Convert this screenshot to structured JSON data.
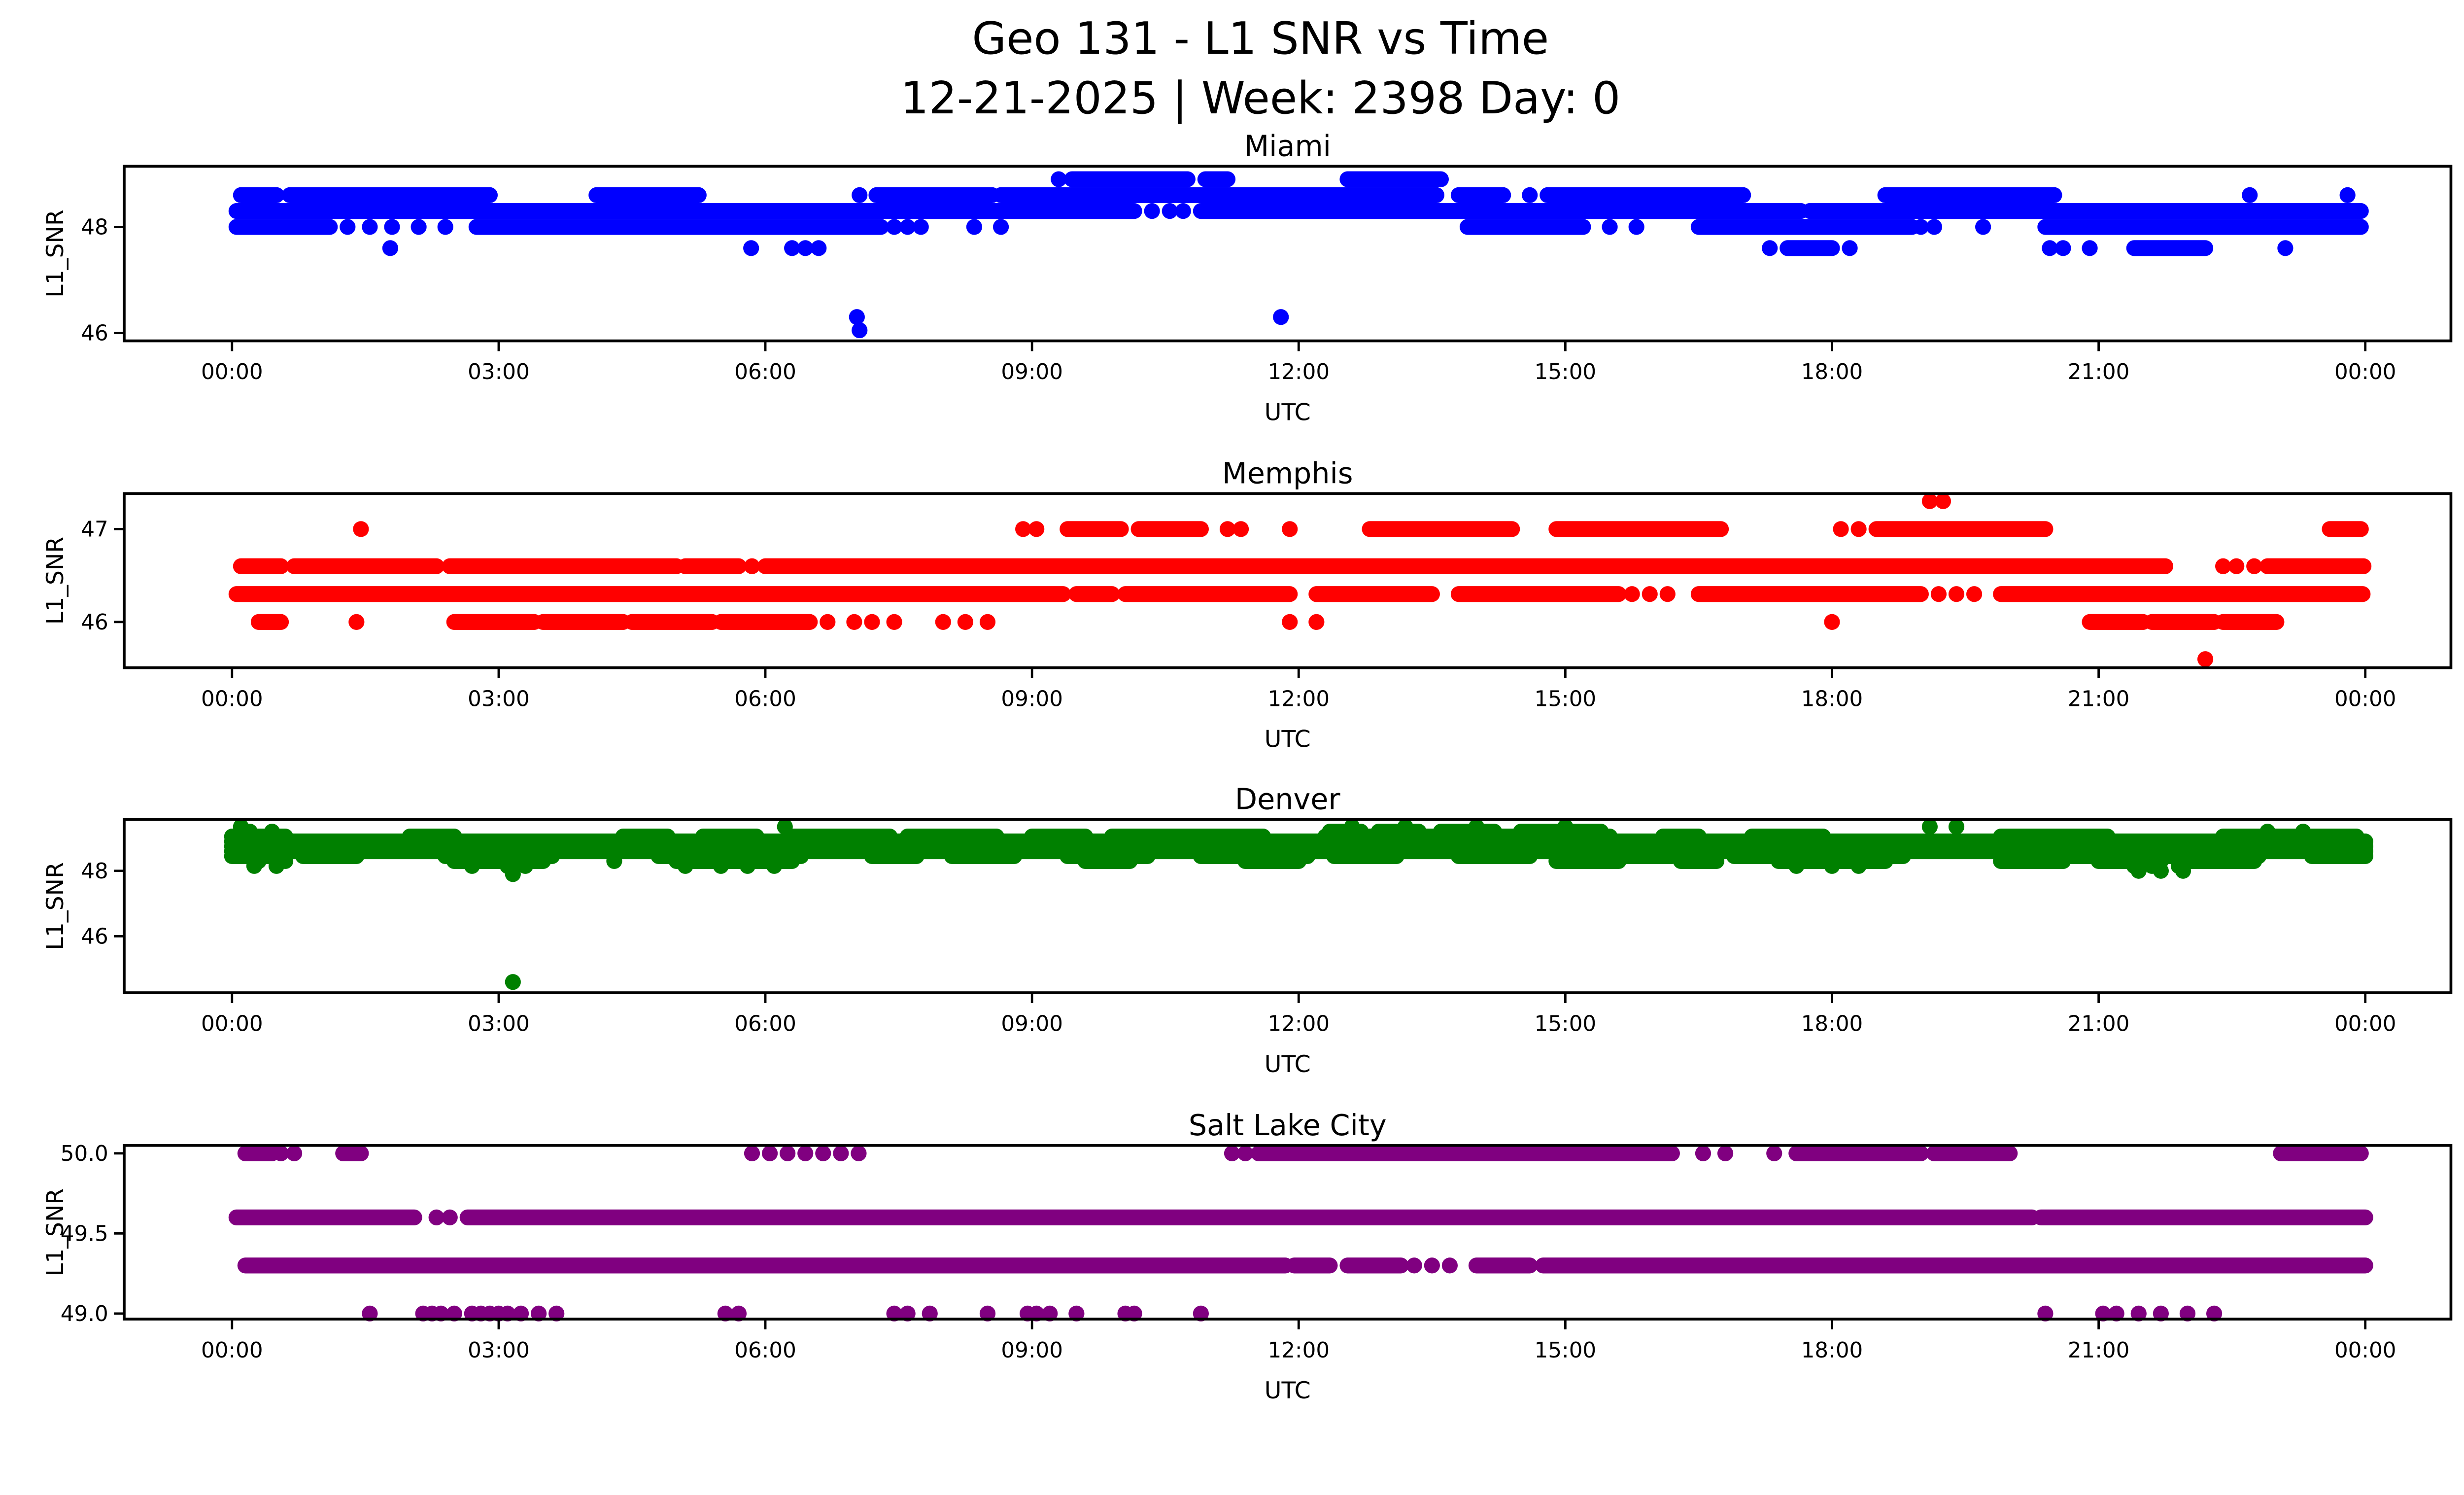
{
  "header": {
    "title_line1": "Geo 131 - L1 SNR vs Time",
    "title_line2": "12-21-2025 | Week: 2398 Day: 0"
  },
  "chart_data": {
    "type": "scatter",
    "title": "Geo 131 - L1 SNR vs Time",
    "subtitle": "12-21-2025 | Week: 2398 Day: 0",
    "x_axis": {
      "label": "UTC",
      "tick_hours": [
        0,
        3,
        6,
        9,
        12,
        15,
        18,
        21,
        24
      ],
      "tick_labels": [
        "00:00",
        "03:00",
        "06:00",
        "09:00",
        "12:00",
        "15:00",
        "18:00",
        "21:00",
        "00:00"
      ],
      "xlim_hours": [
        -1.2,
        25.0
      ],
      "grid": false
    },
    "y_axis_label": "L1_SNR",
    "legend": "none",
    "subplots": [
      {
        "title": "Miami",
        "color": "#0000ff",
        "ytick_values": [
          48,
          46
        ],
        "ytick_labels": [
          "48",
          "46"
        ],
        "ylim": [
          45.85,
          49.15
        ],
        "series": [
          {
            "snr": 48.9,
            "spans": [
              [
                9.45,
                10.75
              ],
              [
                10.95,
                11.2
              ],
              [
                12.55,
                13.6
              ]
            ],
            "dots": [
              9.3
            ]
          },
          {
            "snr": 48.6,
            "spans": [
              [
                0.1,
                0.5
              ],
              [
                0.65,
                2.9
              ],
              [
                4.1,
                5.25
              ],
              [
                7.25,
                8.55
              ],
              [
                8.65,
                13.55
              ],
              [
                13.8,
                14.3
              ],
              [
                14.8,
                17.0
              ],
              [
                18.6,
                20.5
              ]
            ],
            "dots": [
              7.06,
              14.6,
              22.7,
              23.8
            ]
          },
          {
            "snr": 48.3,
            "spans": [
              [
                0.05,
                10.15
              ],
              [
                10.9,
                17.65
              ],
              [
                17.75,
                23.95
              ]
            ],
            "dots": [
              10.35,
              10.55,
              10.7
            ]
          },
          {
            "snr": 48.0,
            "spans": [
              [
                0.05,
                1.1
              ],
              [
                2.75,
                7.3
              ],
              [
                13.9,
                15.2
              ],
              [
                16.5,
                18.9
              ],
              [
                20.4,
                23.95
              ]
            ],
            "dots": [
              1.3,
              1.55,
              1.8,
              2.1,
              2.4,
              7.45,
              7.6,
              7.75,
              8.35,
              8.65,
              15.5,
              15.8,
              19.0,
              19.15,
              19.7
            ]
          },
          {
            "snr": 47.6,
            "spans": [
              [
                17.5,
                18.0
              ],
              [
                21.4,
                22.2
              ]
            ],
            "dots": [
              1.78,
              5.84,
              6.3,
              6.45,
              6.6,
              17.3,
              18.2,
              20.45,
              20.6,
              20.9,
              23.1
            ]
          },
          {
            "snr": 46.3,
            "spans": [],
            "dots": [
              7.03,
              11.8
            ]
          },
          {
            "snr": 46.05,
            "spans": [],
            "dots": [
              7.06
            ]
          }
        ]
      },
      {
        "title": "Memphis",
        "color": "#ff0000",
        "ytick_values": [
          47,
          46
        ],
        "ytick_labels": [
          "47",
          "46"
        ],
        "ylim": [
          45.51,
          47.38
        ],
        "series": [
          {
            "snr": 47.3,
            "spans": [],
            "dots": [
              19.1,
              19.25
            ]
          },
          {
            "snr": 47.0,
            "spans": [
              [
                9.4,
                10.0
              ],
              [
                10.2,
                10.9
              ],
              [
                12.8,
                14.4
              ],
              [
                14.9,
                16.75
              ],
              [
                18.5,
                20.4
              ],
              [
                23.6,
                23.95
              ]
            ],
            "dots": [
              1.45,
              8.9,
              9.05,
              11.2,
              11.35,
              11.9,
              18.1,
              18.3
            ]
          },
          {
            "snr": 46.6,
            "spans": [
              [
                0.1,
                0.55
              ],
              [
                0.7,
                2.3
              ],
              [
                2.45,
                5.0
              ],
              [
                5.1,
                5.7
              ],
              [
                6.0,
                21.75
              ],
              [
                22.9,
                23.98
              ]
            ],
            "dots": [
              5.85,
              22.4,
              22.55,
              22.75
            ]
          },
          {
            "snr": 46.3,
            "spans": [
              [
                0.05,
                9.35
              ],
              [
                9.5,
                9.9
              ],
              [
                10.05,
                11.9
              ],
              [
                12.2,
                13.5
              ],
              [
                13.8,
                15.6
              ],
              [
                16.5,
                19.0
              ],
              [
                19.9,
                23.97
              ]
            ],
            "dots": [
              15.75,
              15.95,
              16.15,
              19.2,
              19.4,
              19.6
            ]
          },
          {
            "snr": 46.0,
            "spans": [
              [
                0.3,
                0.55
              ],
              [
                2.5,
                3.4
              ],
              [
                3.5,
                4.4
              ],
              [
                4.5,
                5.4
              ],
              [
                5.5,
                6.5
              ],
              [
                20.9,
                21.5
              ],
              [
                21.6,
                22.3
              ],
              [
                22.4,
                23.0
              ]
            ],
            "dots": [
              1.4,
              6.7,
              7.0,
              7.2,
              7.45,
              8.0,
              8.25,
              8.5,
              11.9,
              12.2,
              18.0
            ]
          },
          {
            "snr": 45.6,
            "spans": [],
            "dots": [
              22.2
            ]
          }
        ]
      },
      {
        "title": "Denver",
        "color": "#008000",
        "ytick_values": [
          48,
          46
        ],
        "ytick_labels": [
          "48",
          "46"
        ],
        "ylim": [
          44.27,
          49.57
        ],
        "series": [
          {
            "snr": 49.35,
            "spans": [],
            "dots": [
              0.1,
              6.22,
              12.6,
              13.2,
              14.0,
              15.0,
              19.1,
              19.4
            ]
          },
          {
            "snr": 49.2,
            "spans": [
              [
                12.35,
                12.7
              ],
              [
                12.9,
                13.35
              ],
              [
                13.6,
                14.2
              ],
              [
                14.5,
                15.4
              ]
            ],
            "dots": [
              0.2,
              0.45,
              22.9,
              23.3
            ]
          },
          {
            "snr": 49.05,
            "spans": [
              [
                0.0,
                0.6
              ],
              [
                2.0,
                2.5
              ],
              [
                4.4,
                4.9
              ],
              [
                5.3,
                5.9
              ],
              [
                6.3,
                7.4
              ],
              [
                7.6,
                8.6
              ],
              [
                9.0,
                9.6
              ],
              [
                9.9,
                11.6
              ],
              [
                12.3,
                15.5
              ],
              [
                16.1,
                16.5
              ],
              [
                17.1,
                17.9
              ],
              [
                19.9,
                21.1
              ],
              [
                22.4,
                23.9
              ]
            ],
            "dots": []
          },
          {
            "snr": 48.9,
            "spans": [
              [
                0.0,
                24.0
              ]
            ],
            "dots": []
          },
          {
            "snr": 48.75,
            "spans": [
              [
                0.0,
                24.0
              ]
            ],
            "dots": []
          },
          {
            "snr": 48.6,
            "spans": [
              [
                0.0,
                24.0
              ]
            ],
            "dots": []
          },
          {
            "snr": 48.45,
            "spans": [
              [
                0.0,
                0.5
              ],
              [
                0.8,
                1.4
              ],
              [
                2.4,
                3.6
              ],
              [
                4.8,
                6.4
              ],
              [
                7.2,
                7.7
              ],
              [
                8.1,
                8.8
              ],
              [
                9.4,
                10.3
              ],
              [
                10.9,
                12.1
              ],
              [
                12.4,
                13.1
              ],
              [
                13.8,
                14.6
              ],
              [
                15.2,
                16.2
              ],
              [
                16.9,
                18.8
              ],
              [
                19.9,
                22.8
              ],
              [
                23.4,
                24.0
              ]
            ],
            "dots": []
          },
          {
            "snr": 48.3,
            "spans": [
              [
                2.5,
                3.5
              ],
              [
                5.0,
                6.3
              ],
              [
                9.6,
                10.1
              ],
              [
                11.4,
                12.0
              ],
              [
                14.9,
                15.6
              ],
              [
                16.3,
                16.7
              ],
              [
                17.4,
                18.6
              ],
              [
                19.9,
                20.6
              ],
              [
                21.0,
                21.7
              ],
              [
                22.0,
                22.75
              ]
            ],
            "dots": [
              0.3,
              0.6,
              4.3
            ]
          },
          {
            "snr": 48.15,
            "spans": [],
            "dots": [
              0.25,
              0.5,
              2.7,
              3.1,
              3.3,
              5.1,
              5.5,
              5.8,
              6.1,
              17.6,
              18.0,
              18.3,
              21.4,
              21.6,
              21.9
            ]
          },
          {
            "snr": 48.0,
            "spans": [],
            "dots": [
              21.45,
              21.7,
              21.95
            ]
          },
          {
            "snr": 47.9,
            "spans": [],
            "dots": [
              3.16
            ]
          },
          {
            "snr": 44.6,
            "spans": [],
            "dots": [
              3.16
            ]
          }
        ]
      },
      {
        "title": "Salt Lake City",
        "color": "#800080",
        "ytick_values": [
          50.0,
          49.5,
          49.0
        ],
        "ytick_labels": [
          "50.0",
          "49.5",
          "49.0"
        ],
        "ylim": [
          48.97,
          50.05
        ],
        "series": [
          {
            "snr": 50.0,
            "spans": [
              [
                0.15,
                0.45
              ],
              [
                1.25,
                1.45
              ],
              [
                11.55,
                16.2
              ],
              [
                17.6,
                19.0
              ],
              [
                19.15,
                20.0
              ],
              [
                23.05,
                23.95
              ]
            ],
            "dots": [
              0.55,
              0.7,
              5.85,
              6.05,
              6.25,
              6.45,
              6.65,
              6.85,
              7.05,
              11.25,
              11.4,
              16.55,
              16.8,
              17.35
            ]
          },
          {
            "snr": 49.6,
            "spans": [
              [
                0.05,
                2.05
              ],
              [
                2.65,
                20.25
              ],
              [
                20.35,
                24.0
              ]
            ],
            "dots": [
              2.3,
              2.45
            ]
          },
          {
            "snr": 49.3,
            "spans": [
              [
                0.15,
                11.85
              ],
              [
                11.95,
                12.35
              ],
              [
                12.55,
                13.15
              ],
              [
                14.0,
                14.6
              ],
              [
                14.75,
                24.0
              ]
            ],
            "dots": [
              13.3,
              13.5,
              13.7
            ]
          },
          {
            "snr": 49.0,
            "spans": [],
            "dots": [
              1.55,
              2.15,
              2.25,
              2.35,
              2.5,
              2.7,
              2.8,
              2.9,
              3.0,
              3.1,
              3.25,
              3.45,
              3.65,
              5.55,
              5.7,
              7.45,
              7.6,
              7.85,
              8.5,
              8.95,
              9.05,
              9.2,
              9.5,
              10.05,
              10.15,
              10.9,
              20.4,
              21.05,
              21.2,
              21.45,
              21.7,
              22.0,
              22.3
            ]
          }
        ]
      }
    ]
  }
}
